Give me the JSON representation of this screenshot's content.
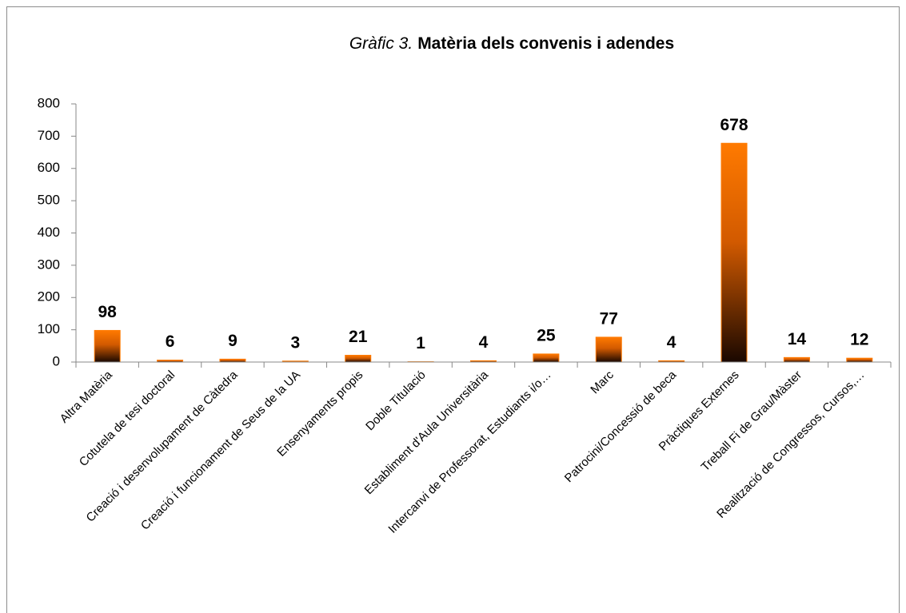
{
  "chart_data": {
    "type": "bar",
    "figure_label": "Gràfic 3.",
    "title": "Matèria dels convenis i adendes",
    "categories": [
      "Altra Matèria",
      "Cotutela de tesi doctoral",
      "Creació i desenvolupament de Càtedra",
      "Creació i funcionament de Seus de la UA",
      "Ensenyaments propis",
      "Doble Titulació",
      "Establiment d'Aula Universitària",
      "Intercanvi de Professorat, Estudiants i/o…",
      "Marc",
      "Patrocini/Concessió de beca",
      "Pràctiques Externes",
      "Treball Fi de Grau/Màster",
      "Realització de Congressos, Cursos,…"
    ],
    "values": [
      98,
      6,
      9,
      3,
      21,
      1,
      4,
      25,
      77,
      4,
      678,
      14,
      12
    ],
    "color": "#ff7a00",
    "ylim": [
      0,
      800
    ],
    "yticks": [
      0,
      100,
      200,
      300,
      400,
      500,
      600,
      700,
      800
    ],
    "grid": false
  }
}
